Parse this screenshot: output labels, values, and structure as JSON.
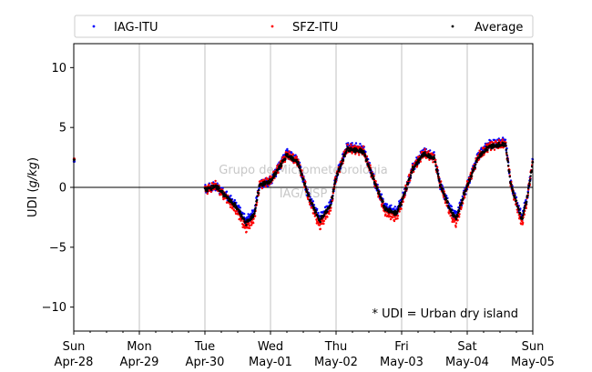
{
  "chart_data": {
    "type": "scatter",
    "ylabel_main": "UDI (",
    "ylabel_unit": "g/kg",
    "ylabel_close": ")",
    "ylim": [
      -12,
      12
    ],
    "yticks": [
      -10,
      -5,
      0,
      5,
      10
    ],
    "xlim": [
      "2019-04-28",
      "2019-05-05"
    ],
    "xticks": [
      {
        "day": "Sun",
        "date": "Apr-28"
      },
      {
        "day": "Mon",
        "date": "Apr-29"
      },
      {
        "day": "Tue",
        "date": "Apr-30"
      },
      {
        "day": "Wed",
        "date": "May-01"
      },
      {
        "day": "Thu",
        "date": "May-02"
      },
      {
        "day": "Fri",
        "date": "May-03"
      },
      {
        "day": "Sat",
        "date": "May-04"
      },
      {
        "day": "Sun",
        "date": "May-05"
      }
    ],
    "grid": "vertical",
    "zero_line": true,
    "legend_position": "top",
    "annotation": "* UDI = Urban dry island",
    "watermark_line1": "Grupo de Micrometeorologia",
    "watermark_line2": "IAG/USP",
    "series": [
      {
        "name": "IAG-ITU",
        "color": "#0000ff"
      },
      {
        "name": "SFZ-ITU",
        "color": "#ff0000"
      },
      {
        "name": "Average",
        "color": "#000000"
      }
    ],
    "profile": [
      {
        "t": "2019-04-28 00:00",
        "y": 2.3
      },
      {
        "t": "2019-04-30 00:00",
        "y": -0.2
      },
      {
        "t": "2019-04-30 04:00",
        "y": 0.1
      },
      {
        "t": "2019-04-30 08:00",
        "y": -0.8
      },
      {
        "t": "2019-04-30 12:00",
        "y": -1.8
      },
      {
        "t": "2019-04-30 15:00",
        "y": -3.0
      },
      {
        "t": "2019-04-30 18:00",
        "y": -2.3
      },
      {
        "t": "2019-04-30 20:00",
        "y": 0.2
      },
      {
        "t": "2019-05-01 00:00",
        "y": 0.5
      },
      {
        "t": "2019-05-01 06:00",
        "y": 2.7
      },
      {
        "t": "2019-05-01 10:00",
        "y": 2.1
      },
      {
        "t": "2019-05-01 14:00",
        "y": -0.8
      },
      {
        "t": "2019-05-01 18:00",
        "y": -2.8
      },
      {
        "t": "2019-05-01 22:00",
        "y": -1.5
      },
      {
        "t": "2019-05-02 00:00",
        "y": 0.8
      },
      {
        "t": "2019-05-02 04:00",
        "y": 3.2
      },
      {
        "t": "2019-05-02 10:00",
        "y": 3.0
      },
      {
        "t": "2019-05-02 14:00",
        "y": 0.5
      },
      {
        "t": "2019-05-02 18:00",
        "y": -1.8
      },
      {
        "t": "2019-05-02 22:00",
        "y": -2.2
      },
      {
        "t": "2019-05-03 00:00",
        "y": -1.2
      },
      {
        "t": "2019-05-03 04:00",
        "y": 1.5
      },
      {
        "t": "2019-05-03 08:00",
        "y": 2.8
      },
      {
        "t": "2019-05-03 12:00",
        "y": 2.4
      },
      {
        "t": "2019-05-03 14:00",
        "y": 0.3
      },
      {
        "t": "2019-05-03 18:00",
        "y": -2.0
      },
      {
        "t": "2019-05-03 20:00",
        "y": -2.6
      },
      {
        "t": "2019-05-03 23:00",
        "y": -0.5
      },
      {
        "t": "2019-05-04 04:00",
        "y": 2.5
      },
      {
        "t": "2019-05-04 08:00",
        "y": 3.4
      },
      {
        "t": "2019-05-04 14:00",
        "y": 3.6
      },
      {
        "t": "2019-05-04 16:00",
        "y": 0.2
      },
      {
        "t": "2019-05-04 20:00",
        "y": -2.7
      },
      {
        "t": "2019-05-04 22:00",
        "y": -0.8
      },
      {
        "t": "2019-05-05 00:00",
        "y": 2.1
      }
    ]
  }
}
